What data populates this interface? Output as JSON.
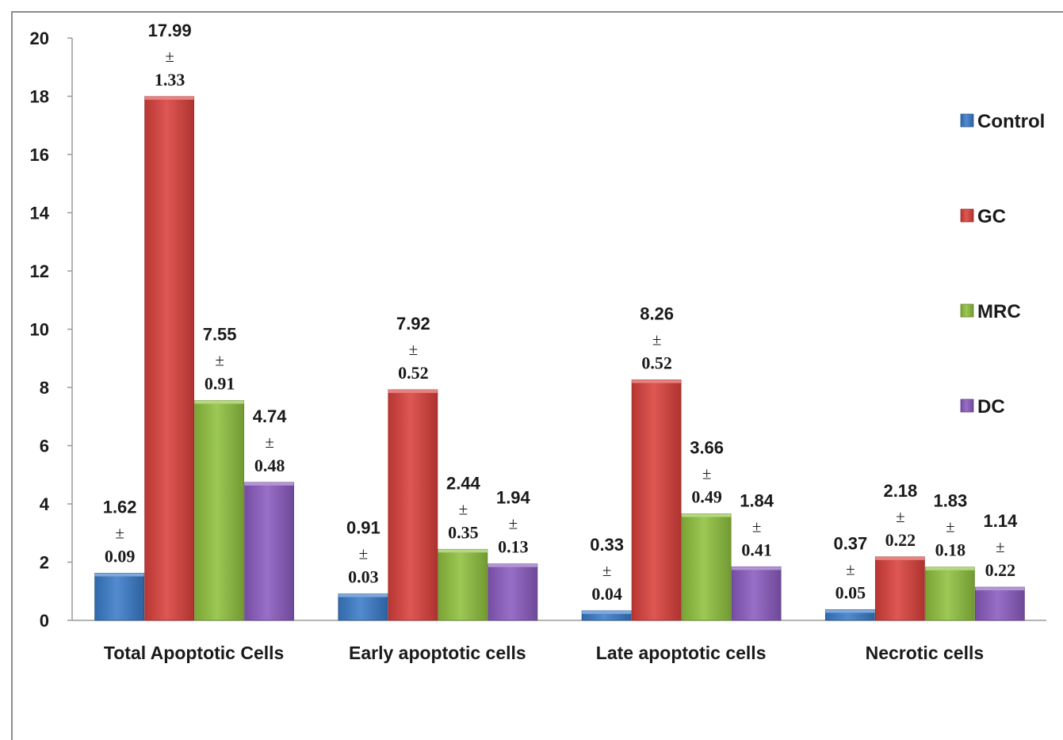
{
  "chart_data": {
    "type": "bar",
    "categories": [
      "Total Apoptotic Cells",
      "Early apoptotic cells",
      "Late apoptotic cells",
      "Necrotic cells"
    ],
    "series": [
      {
        "name": "Control",
        "color": "#3a7bc8",
        "values": [
          1.62,
          0.91,
          0.33,
          0.37
        ],
        "sd": [
          "0.09",
          "0.03",
          "0.04",
          "0.05"
        ],
        "labels": [
          "1.62",
          "0.91",
          "0.33",
          "0.37"
        ]
      },
      {
        "name": "GC",
        "color": "#d9403b",
        "values": [
          17.99,
          7.92,
          8.26,
          2.18
        ],
        "sd": [
          "1.33",
          "0.52",
          "0.52",
          "0.22"
        ],
        "labels": [
          "17.99",
          "7.92",
          "8.26",
          "2.18"
        ]
      },
      {
        "name": "MRC",
        "color": "#8fc13e",
        "values": [
          7.55,
          2.44,
          3.66,
          1.83
        ],
        "sd": [
          "0.91",
          "0.35",
          "0.49",
          "0.18"
        ],
        "labels": [
          "7.55",
          "2.44",
          "3.66",
          "1.83"
        ]
      },
      {
        "name": "DC",
        "color": "#8a5bbf",
        "values": [
          4.74,
          1.94,
          1.84,
          1.14
        ],
        "sd": [
          "0.48",
          "0.13",
          "0.41",
          "0.22"
        ],
        "labels": [
          "4.74",
          "1.94",
          "1.84",
          "1.14"
        ]
      }
    ],
    "ylim": [
      0,
      20
    ],
    "yticks": [
      "0",
      "2",
      "4",
      "6",
      "8",
      "10",
      "12",
      "14",
      "16",
      "18",
      "20"
    ],
    "pm_symbol": "±",
    "legend_position": "right",
    "grid": false,
    "title": "",
    "xlabel": "",
    "ylabel": ""
  }
}
